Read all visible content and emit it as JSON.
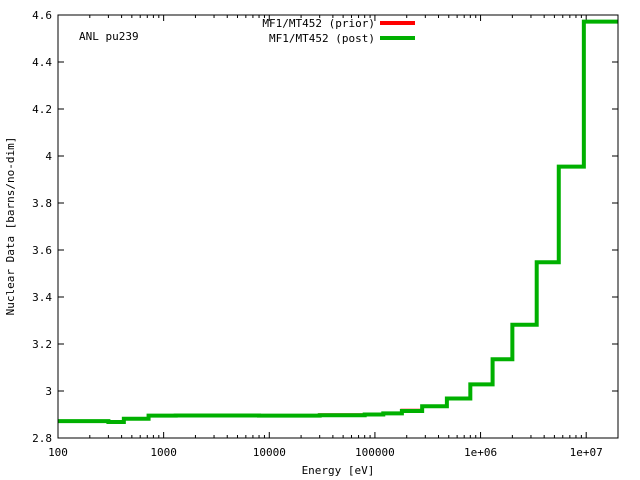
{
  "chart_data": {
    "type": "line",
    "step": true,
    "annotation": "ANL pu239",
    "xlabel": "Energy [eV]",
    "ylabel": "Nuclear Data [barns/no-dim]",
    "xscale": "log",
    "xlim": [
      100,
      20000000
    ],
    "ylim": [
      2.8,
      4.6
    ],
    "xticks": [
      {
        "value": 100,
        "label": "100"
      },
      {
        "value": 1000,
        "label": "1000"
      },
      {
        "value": 10000,
        "label": "10000"
      },
      {
        "value": 100000,
        "label": "100000"
      },
      {
        "value": 1000000,
        "label": "1e+06"
      },
      {
        "value": 10000000,
        "label": "1e+07"
      }
    ],
    "yticks": [
      {
        "value": 2.8,
        "label": "2.8"
      },
      {
        "value": 3.0,
        "label": "3"
      },
      {
        "value": 3.2,
        "label": "3.2"
      },
      {
        "value": 3.4,
        "label": "3.4"
      },
      {
        "value": 3.6,
        "label": "3.6"
      },
      {
        "value": 3.8,
        "label": "3.8"
      },
      {
        "value": 4.0,
        "label": "4"
      },
      {
        "value": 4.2,
        "label": "4.2"
      },
      {
        "value": 4.4,
        "label": "4.4"
      },
      {
        "value": 4.6,
        "label": "4.6"
      }
    ],
    "legend_position": "top-center",
    "series": [
      {
        "name": "MF1/MT452 (prior)",
        "color": "#ff0000",
        "x": [
          100,
          300,
          420,
          720,
          1300,
          8000,
          30000,
          80000,
          120000,
          180000,
          280000,
          480000,
          800000,
          1300000,
          2000000,
          3400000,
          5500000,
          9500000,
          20000000
        ],
        "y": [
          2.872,
          2.868,
          2.882,
          2.895,
          2.896,
          2.895,
          2.899,
          2.9,
          2.905,
          2.918,
          2.935,
          2.968,
          3.028,
          3.135,
          3.282,
          3.548,
          3.955,
          4.572,
          4.572
        ]
      },
      {
        "name": "MF1/MT452 (post)",
        "color": "#00b000",
        "x": [
          100,
          300,
          420,
          720,
          1300,
          8000,
          30000,
          80000,
          120000,
          180000,
          280000,
          480000,
          800000,
          1300000,
          2000000,
          3400000,
          5500000,
          9500000,
          20000000
        ],
        "y": [
          2.872,
          2.868,
          2.882,
          2.895,
          2.896,
          2.895,
          2.897,
          2.9,
          2.905,
          2.915,
          2.935,
          2.968,
          3.028,
          3.135,
          3.282,
          3.548,
          3.955,
          4.572,
          4.572
        ]
      }
    ]
  }
}
